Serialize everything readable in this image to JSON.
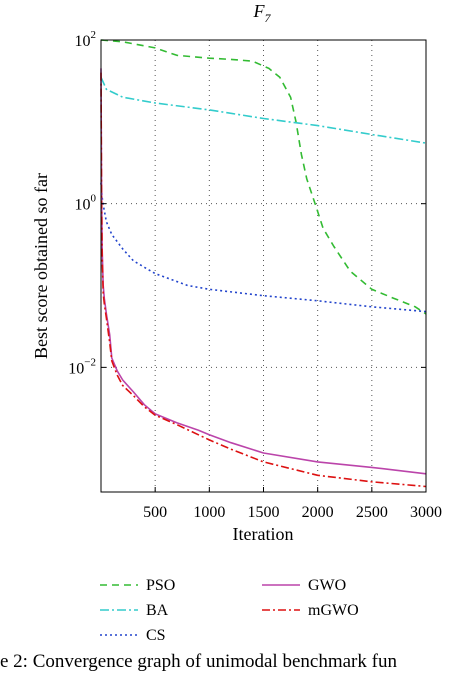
{
  "chart_data": {
    "type": "line",
    "title": "F",
    "title_subscript": "7",
    "xlabel": "Iteration",
    "ylabel": "Best score obtained so far",
    "xlim": [
      0,
      3000
    ],
    "ylim": [
      0.0003,
      100
    ],
    "yscale": "log",
    "xticks": [
      500,
      1000,
      1500,
      2000,
      2500,
      3000
    ],
    "xtick_labels": [
      "500",
      "1000",
      "1500",
      "2000",
      "2500",
      "3000"
    ],
    "yticks": [
      0.01,
      1,
      100
    ],
    "ytick_labels": [
      {
        "base": "10",
        "exp": "−2"
      },
      {
        "base": "10",
        "exp": "0"
      },
      {
        "base": "10",
        "exp": "2"
      }
    ],
    "grid": true,
    "legend_position": "below",
    "series": [
      {
        "name": "PSO",
        "color": "#33bb33",
        "dash": "7,5",
        "points": [
          [
            0,
            100
          ],
          [
            200,
            95
          ],
          [
            500,
            80
          ],
          [
            700,
            65
          ],
          [
            1000,
            60
          ],
          [
            1200,
            58
          ],
          [
            1400,
            55
          ],
          [
            1550,
            45
          ],
          [
            1650,
            35
          ],
          [
            1750,
            20
          ],
          [
            1800,
            10
          ],
          [
            1850,
            4
          ],
          [
            1900,
            2
          ],
          [
            2000,
            0.8
          ],
          [
            2050,
            0.5
          ],
          [
            2150,
            0.3
          ],
          [
            2300,
            0.15
          ],
          [
            2500,
            0.09
          ],
          [
            2700,
            0.07
          ],
          [
            2900,
            0.055
          ],
          [
            3000,
            0.045
          ]
        ]
      },
      {
        "name": "BA",
        "color": "#33cccc",
        "dash": "9,3,2,3",
        "points": [
          [
            0,
            35
          ],
          [
            50,
            25
          ],
          [
            200,
            20
          ],
          [
            500,
            17
          ],
          [
            1000,
            14
          ],
          [
            1500,
            11
          ],
          [
            2000,
            9
          ],
          [
            2500,
            7
          ],
          [
            3000,
            5.5
          ]
        ]
      },
      {
        "name": "CS",
        "color": "#2244cc",
        "dash": "2,3",
        "points": [
          [
            0,
            1.8
          ],
          [
            10,
            1.2
          ],
          [
            25,
            0.9
          ],
          [
            50,
            0.6
          ],
          [
            100,
            0.42
          ],
          [
            200,
            0.28
          ],
          [
            300,
            0.2
          ],
          [
            500,
            0.14
          ],
          [
            800,
            0.1
          ],
          [
            1000,
            0.09
          ],
          [
            1500,
            0.075
          ],
          [
            2000,
            0.065
          ],
          [
            2500,
            0.055
          ],
          [
            3000,
            0.048
          ]
        ]
      },
      {
        "name": "GWO",
        "color": "#bb44aa",
        "dash": "",
        "points": [
          [
            0,
            45
          ],
          [
            5,
            2
          ],
          [
            10,
            0.3
          ],
          [
            20,
            0.1
          ],
          [
            30,
            0.07
          ],
          [
            50,
            0.045
          ],
          [
            80,
            0.025
          ],
          [
            100,
            0.013
          ],
          [
            150,
            0.009
          ],
          [
            200,
            0.007
          ],
          [
            300,
            0.005
          ],
          [
            400,
            0.0035
          ],
          [
            500,
            0.0027
          ],
          [
            700,
            0.0021
          ],
          [
            900,
            0.0017
          ],
          [
            1000,
            0.0015
          ],
          [
            1200,
            0.0012
          ],
          [
            1500,
            0.0009
          ],
          [
            2000,
            0.0007
          ],
          [
            2500,
            0.0006
          ],
          [
            3000,
            0.0005
          ]
        ]
      },
      {
        "name": "mGWO",
        "color": "#dd1111",
        "dash": "8,3,2,3",
        "points": [
          [
            0,
            40
          ],
          [
            5,
            1.5
          ],
          [
            10,
            0.25
          ],
          [
            20,
            0.08
          ],
          [
            30,
            0.06
          ],
          [
            50,
            0.04
          ],
          [
            80,
            0.02
          ],
          [
            100,
            0.012
          ],
          [
            150,
            0.008
          ],
          [
            200,
            0.006
          ],
          [
            300,
            0.0045
          ],
          [
            400,
            0.0033
          ],
          [
            500,
            0.0026
          ],
          [
            700,
            0.002
          ],
          [
            900,
            0.0015
          ],
          [
            1000,
            0.0013
          ],
          [
            1200,
            0.001
          ],
          [
            1500,
            0.0007
          ],
          [
            2000,
            0.00048
          ],
          [
            2500,
            0.0004
          ],
          [
            3000,
            0.00035
          ]
        ]
      }
    ]
  },
  "caption": "e 2: Convergence graph of unimodal benchmark fun"
}
